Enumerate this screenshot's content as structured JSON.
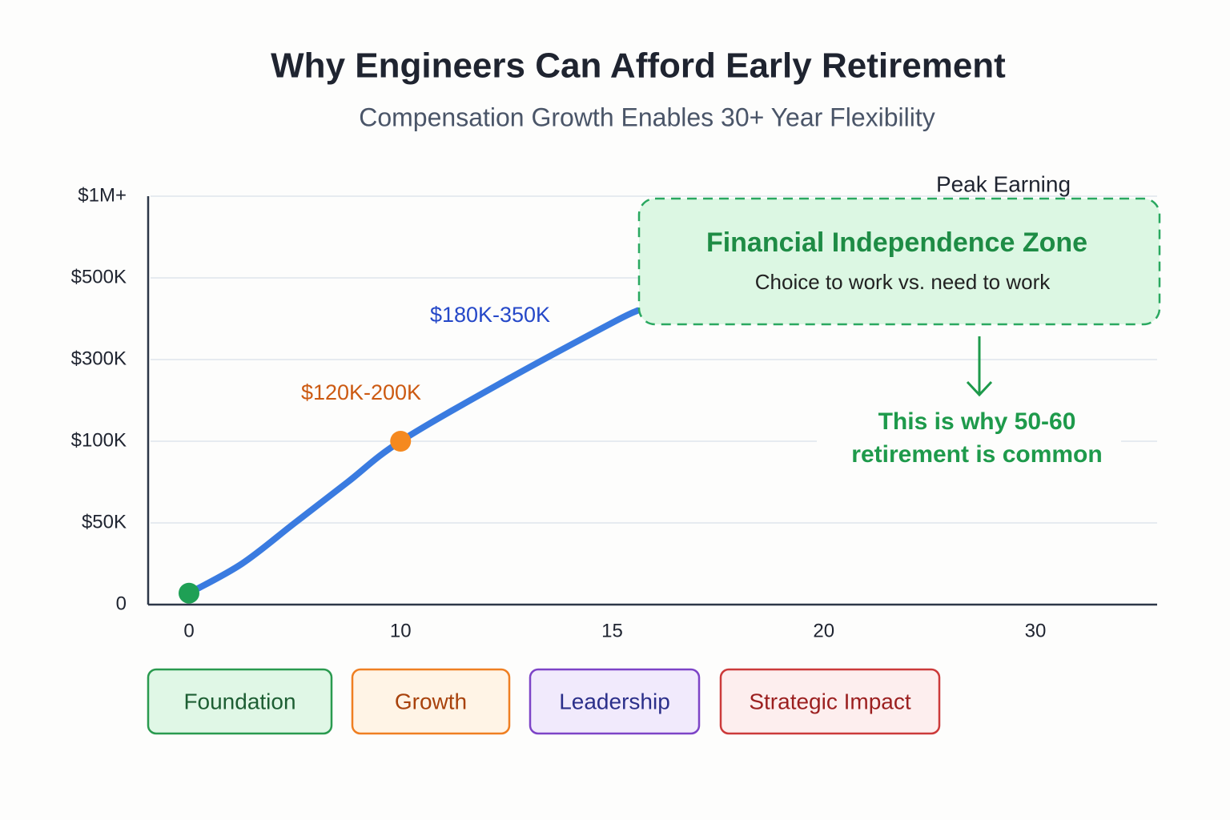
{
  "chart_data": {
    "type": "line",
    "title": "Why Engineers Can Afford Early Retirement",
    "subtitle": "Compensation Growth Enables 30+ Year Flexibility",
    "scale": "piecewise",
    "x": [
      0,
      2.5,
      5,
      7.5,
      10,
      12.5,
      15,
      15.6
    ],
    "series": [
      {
        "color": "#3a7be0",
        "values": [
          7000,
          25000,
          50000,
          75000,
          100000,
          250000,
          390000,
          420000
        ],
        "marker_colors": [
          "#1fa055",
          null,
          null,
          null,
          "#f5891f",
          null,
          null,
          null
        ]
      }
    ],
    "xlim": [
      -2,
      36
    ],
    "xticks": [
      0,
      10,
      15,
      20,
      30
    ],
    "ylim": [
      0,
      1000000
    ],
    "yticks": [
      0,
      {
        "value": 50000,
        "label": "$50K"
      },
      {
        "value": 100000,
        "label": "$100K"
      },
      {
        "value": 300000,
        "label": "$300K"
      },
      {
        "value": 500000,
        "label": "$500K"
      },
      {
        "value": 1000000,
        "label": "$1M+"
      }
    ],
    "grid": true,
    "annotations": {
      "early_range": "$120K-200K",
      "mid_range": "$180K-350K",
      "peak": "Peak Earning",
      "zone_title": "Financial Independence Zone",
      "zone_subtitle": "Choice to work vs. need to work",
      "note": [
        "This is why 50-60",
        "retirement is common"
      ]
    },
    "phases": [
      {
        "label": "Foundation",
        "color": "#2a9a4f",
        "fill": "#e0f7e6",
        "text": "#1d5e33"
      },
      {
        "label": "Growth",
        "color": "#ef7f22",
        "fill": "#fff4e6",
        "text": "#a8420c"
      },
      {
        "label": "Leadership",
        "color": "#7d44c7",
        "fill": "#f1eafc",
        "text": "#2b2f8a"
      },
      {
        "label": "Strategic Impact",
        "color": "#cc3a3a",
        "fill": "#fdeeee",
        "text": "#9b1f1f"
      }
    ]
  }
}
